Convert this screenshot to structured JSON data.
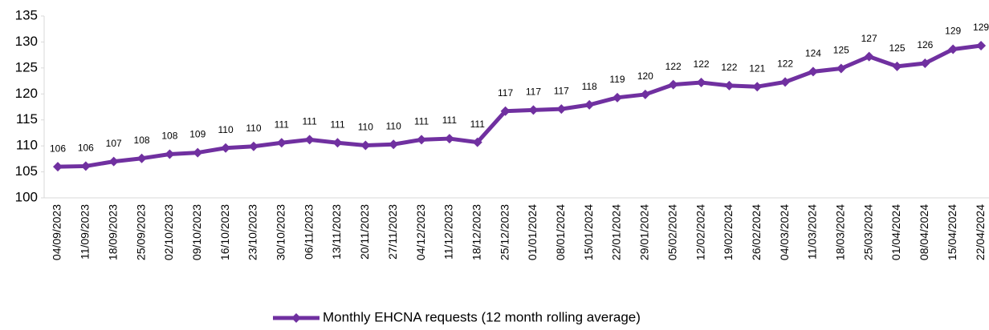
{
  "chart_data": {
    "type": "line",
    "categories": [
      "04/09/2023",
      "11/09/2023",
      "18/09/2023",
      "25/09/2023",
      "02/10/2023",
      "09/10/2023",
      "16/10/2023",
      "23/10/2023",
      "30/10/2023",
      "06/11/2023",
      "13/11/2023",
      "20/11/2023",
      "27/11/2023",
      "04/12/2023",
      "11/12/2023",
      "18/12/2023",
      "25/12/2023",
      "01/01/2024",
      "08/01/2024",
      "15/01/2024",
      "22/01/2024",
      "29/01/2024",
      "05/02/2024",
      "12/02/2024",
      "19/02/2024",
      "26/02/2024",
      "04/03/2024",
      "11/03/2024",
      "18/03/2024",
      "25/03/2024",
      "01/04/2024",
      "08/04/2024",
      "15/04/2024",
      "22/04/2024"
    ],
    "series": [
      {
        "name": "Monthly EHCNA requests (12 month rolling average)",
        "color": "#7030a0",
        "values": [
          106.0,
          106.1,
          107.0,
          107.6,
          108.4,
          108.7,
          109.6,
          109.9,
          110.6,
          111.2,
          110.6,
          110.1,
          110.3,
          111.2,
          111.4,
          110.7,
          116.7,
          116.9,
          117.1,
          117.9,
          119.3,
          119.9,
          121.8,
          122.2,
          121.6,
          121.4,
          122.3,
          124.3,
          124.9,
          127.2,
          125.3,
          125.9,
          128.6,
          129.3
        ],
        "value_labels": [
          "106",
          "106",
          "107",
          "108",
          "108",
          "109",
          "110",
          "110",
          "111",
          "111",
          "111",
          "110",
          "110",
          "111",
          "111",
          "111",
          "117",
          "117",
          "117",
          "118",
          "119",
          "120",
          "122",
          "122",
          "122",
          "121",
          "122",
          "124",
          "125",
          "127",
          "125",
          "126",
          "129",
          "129"
        ]
      }
    ],
    "ylim": [
      100,
      135
    ],
    "yticks": [
      100,
      105,
      110,
      115,
      120,
      125,
      130,
      135
    ],
    "grid": false,
    "legend": "bottom"
  }
}
